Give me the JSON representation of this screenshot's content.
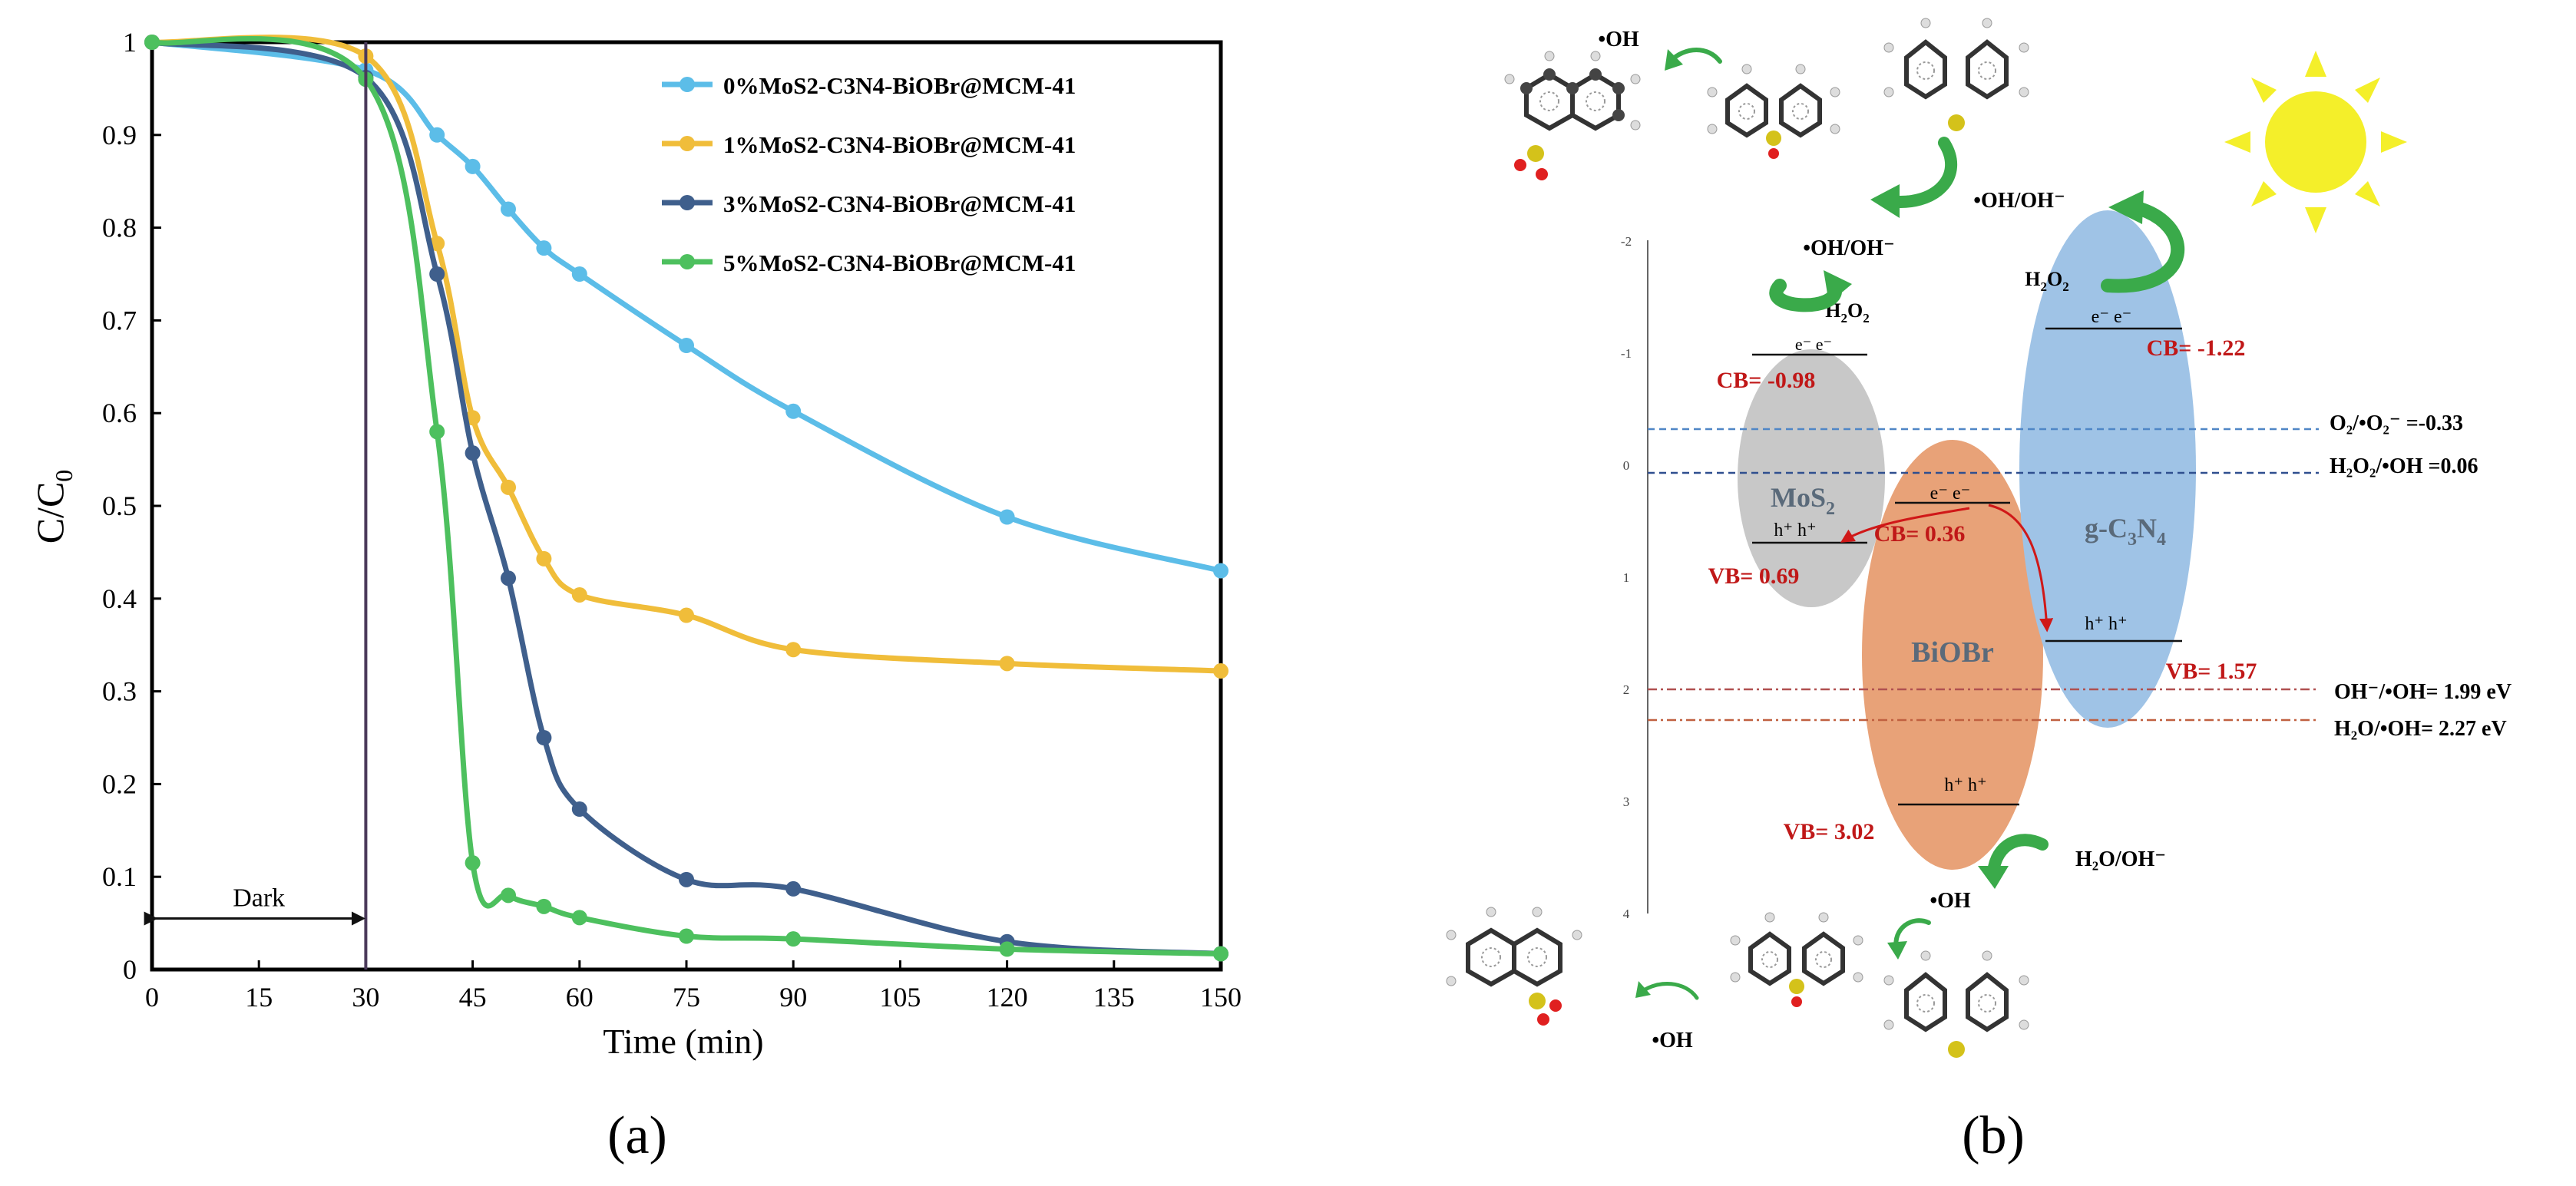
{
  "chart_data": {
    "type": "line",
    "panel_label": "(a)",
    "title": "",
    "xlabel": "Time (min)",
    "ylabel": "C/C0",
    "ylabel_main": "C/C",
    "ylabel_sub": "0",
    "xlim": [
      0,
      150
    ],
    "ylim": [
      0,
      1
    ],
    "xticks": [
      0,
      15,
      30,
      45,
      60,
      75,
      90,
      105,
      120,
      135,
      150
    ],
    "yticks": [
      0,
      0.1,
      0.2,
      0.3,
      0.4,
      0.5,
      0.6,
      0.7,
      0.8,
      0.9,
      1
    ],
    "grid": false,
    "legend_position": "top-right",
    "dark_label": "Dark",
    "dark_range": [
      0,
      30
    ],
    "divider_x": 30,
    "series": [
      {
        "name": "0%MoS2-C3N4-BiOBr@MCM-41",
        "color": "#5cbde8",
        "x": [
          0,
          30,
          40,
          45,
          50,
          55,
          60,
          75,
          90,
          120,
          150
        ],
        "y": [
          1.0,
          0.97,
          0.9,
          0.866,
          0.82,
          0.778,
          0.75,
          0.673,
          0.602,
          0.488,
          0.43
        ]
      },
      {
        "name": "1%MoS2-C3N4-BiOBr@MCM-41",
        "color": "#f0bd3a",
        "x": [
          0,
          30,
          40,
          45,
          50,
          55,
          60,
          75,
          90,
          120,
          150
        ],
        "y": [
          1.0,
          0.985,
          0.783,
          0.595,
          0.52,
          0.443,
          0.404,
          0.382,
          0.345,
          0.33,
          0.322
        ]
      },
      {
        "name": "3%MoS2-C3N4-BiOBr@MCM-41",
        "color": "#3f5f8c",
        "x": [
          0,
          30,
          40,
          45,
          50,
          55,
          60,
          75,
          90,
          120,
          150
        ],
        "y": [
          1.0,
          0.962,
          0.75,
          0.557,
          0.422,
          0.25,
          0.173,
          0.097,
          0.087,
          0.03,
          0.017
        ]
      },
      {
        "name": "5%MoS2-C3N4-BiOBr@MCM-41",
        "color": "#4dc05e",
        "x": [
          0,
          30,
          40,
          45,
          50,
          55,
          60,
          75,
          90,
          120,
          150
        ],
        "y": [
          1.0,
          0.96,
          0.58,
          0.115,
          0.08,
          0.068,
          0.056,
          0.036,
          0.033,
          0.022,
          0.017
        ]
      }
    ]
  },
  "diagram": {
    "panel_label": "(b)",
    "axis_ticks": [
      "-2",
      "-1",
      "0",
      "1",
      "2",
      "3",
      "4"
    ],
    "mos2": {
      "name_main": "MoS",
      "name_sub": "2",
      "cb": "CB= -0.98",
      "vb": "VB= 0.69",
      "electrons": "e⁻ e⁻",
      "holes": "h⁺ h⁺",
      "reagent_main": "H",
      "reagent_sub1": "2",
      "reagent_mid": "O",
      "reagent_sub2": "2",
      "radical": "•OH/OH⁻"
    },
    "biobr": {
      "name": "BiOBr",
      "cb": "CB= 0.36",
      "vb": "VB= 3.02",
      "electrons": "e⁻ e⁻",
      "holes": "h⁺ h⁺",
      "product": "H₂O/OH⁻",
      "radical": "•OH"
    },
    "gc3n4": {
      "name_main": "g-C",
      "name_sub1": "3",
      "name_mid": "N",
      "name_sub2": "4",
      "cb": "CB= -1.22",
      "vb": "VB= 1.57",
      "electrons": "e⁻ e⁻",
      "holes": "h⁺ h⁺",
      "reagent_main": "H",
      "reagent_sub1": "2",
      "reagent_mid": "O",
      "reagent_sub2": "2",
      "radical": "•OH/OH⁻"
    },
    "potentials": [
      {
        "label": "O₂/•O₂⁻ =-0.33",
        "color": "#4f86c6"
      },
      {
        "label": "H₂O₂/•OH =0.06",
        "color": "#2f4f8f"
      },
      {
        "label": "OH⁻/•OH= 1.99 eV",
        "color": "#b05050"
      },
      {
        "label": "H₂O/•OH= 2.27 eV",
        "color": "#c06040"
      }
    ],
    "top_radical": "•OH",
    "bottom_radical": "•OH",
    "colors": {
      "mos2": "#c8c8c8",
      "biobr": "#e8a278",
      "gc3n4": "#9fc3e6",
      "cb_text": "#c01818",
      "arrow_green": "#3aaa4a",
      "sun": "#f4ef2a"
    }
  }
}
